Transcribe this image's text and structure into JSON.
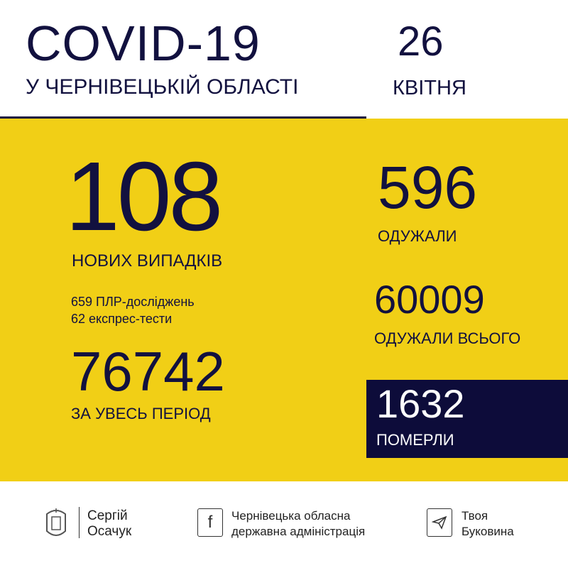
{
  "header": {
    "title": "COVID-19",
    "subtitle": "У ЧЕРНІВЕЦЬКІЙ ОБЛАСТІ",
    "day": "26",
    "month": "КВІТНЯ"
  },
  "stats": {
    "new_cases": "108",
    "new_cases_label": "НОВИХ ВИПАДКІВ",
    "pcr": "659 ПЛР-досліджень",
    "express": "62 експрес-тести",
    "total": "76742",
    "total_label": "ЗА УВЕСЬ ПЕРІОД",
    "recovered": "596",
    "recovered_label": "ОДУЖАЛИ",
    "recovered_total": "60009",
    "recovered_total_label": "ОДУЖАЛИ ВСЬОГО",
    "deaths": "1632",
    "deaths_label": "ПОМЕРЛИ"
  },
  "footer": {
    "person": [
      "Сергій",
      "Осачук"
    ],
    "facebook": [
      "Чернівецька обласна",
      "державна адміністрація"
    ],
    "telegram": [
      "Твоя",
      "Буковина"
    ]
  },
  "colors": {
    "yellow": "#f1cf16",
    "navy": "#0d0c3a"
  }
}
